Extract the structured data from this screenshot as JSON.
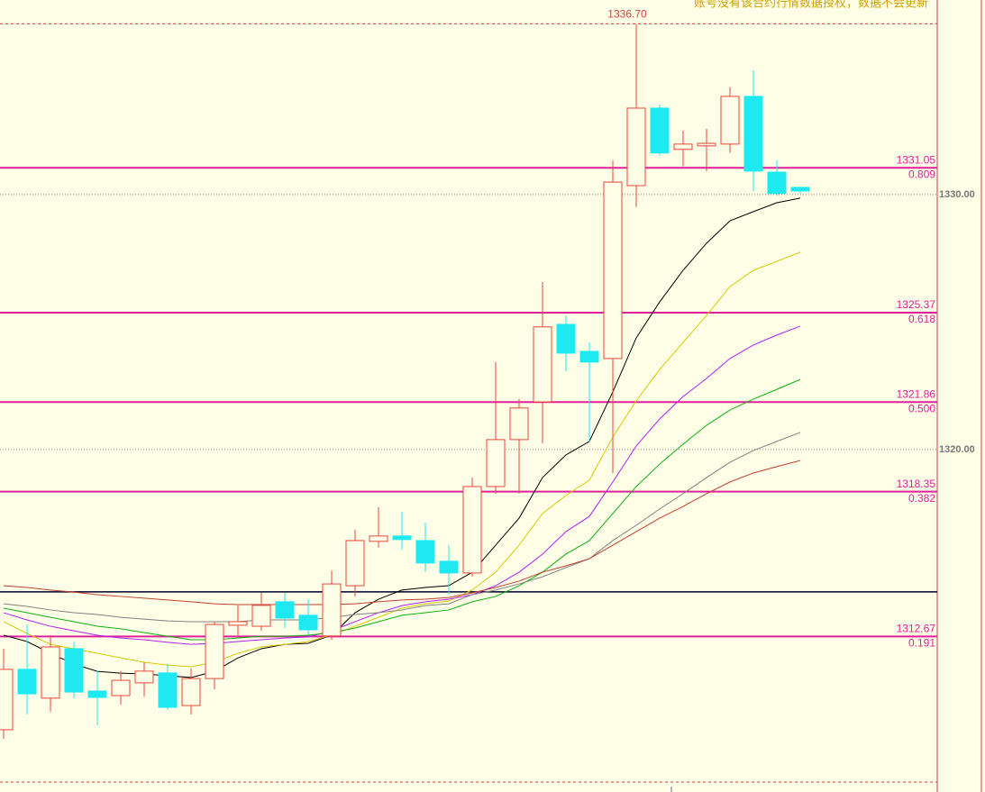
{
  "chart_data": {
    "type": "candlestick",
    "notice": "账号没有该合约行情数据授权，数据不会更新",
    "ylim": [
      1306.57,
      1337.63
    ],
    "yticks": [
      {
        "value": 1330,
        "label": "1330.00"
      },
      {
        "value": 1320,
        "label": "1320.00"
      }
    ],
    "grid": true,
    "up_color": "#e8463c",
    "down_color": "#1ee8f0",
    "open": [
      1309.01,
      1311.38,
      1310.25,
      1312.19,
      1310.53,
      1310.35,
      1310.85,
      1311.24,
      1309.96,
      1311.02,
      1313.11,
      1313.07,
      1314.03,
      1313.5,
      1312.69,
      1314.66,
      1316.4,
      1316.61,
      1316.43,
      1315.62,
      1315.16,
      1318.55,
      1320.39,
      1321.87,
      1324.91,
      1323.85,
      1323.57,
      1330.35,
      1333.39,
      1331.77,
      1331.91,
      1331.98,
      1333.85,
      1330.88,
      1330.28
    ],
    "high": [
      1312.19,
      1313.14,
      1312.72,
      1312.47,
      1311.31,
      1311.31,
      1311.66,
      1311.59,
      1311.41,
      1313.25,
      1313.89,
      1314.38,
      1314.38,
      1314.13,
      1315.26,
      1316.86,
      1317.74,
      1317.56,
      1317.14,
      1316.25,
      1318.9,
      1323.43,
      1321.98,
      1326.57,
      1325.26,
      1324.2,
      1331.34,
      1336.7,
      1333.53,
      1332.51,
      1332.58,
      1334.21,
      1334.88,
      1331.34,
      1330.32
    ],
    "low": [
      1308.66,
      1309.61,
      1309.72,
      1310.25,
      1309.19,
      1310.0,
      1310.32,
      1309.79,
      1309.61,
      1310.6,
      1312.72,
      1312.9,
      1313.0,
      1312.72,
      1312.54,
      1314.24,
      1316.15,
      1316.08,
      1315.19,
      1314.31,
      1315.02,
      1318.27,
      1318.27,
      1320.25,
      1323.07,
      1320.32,
      1319.08,
      1329.51,
      1331.52,
      1331.1,
      1330.92,
      1331.63,
      1330.14,
      1329.96,
      1330.04
    ],
    "close": [
      1311.38,
      1310.42,
      1312.26,
      1310.49,
      1310.28,
      1310.95,
      1311.31,
      1309.89,
      1311.02,
      1313.14,
      1313.25,
      1313.89,
      1313.39,
      1312.93,
      1314.73,
      1316.43,
      1316.61,
      1316.47,
      1315.55,
      1315.16,
      1318.55,
      1320.39,
      1321.63,
      1324.81,
      1323.78,
      1323.43,
      1330.49,
      1333.39,
      1331.63,
      1331.98,
      1332.01,
      1333.85,
      1330.92,
      1330.04,
      1330.14
    ],
    "lines": [
      {
        "color": "#000000",
        "values": [
          1312.72,
          1312.47,
          1312.01,
          1311.59,
          1311.3,
          1311.23,
          1311.2,
          1311.13,
          1311.06,
          1311.3,
          1311.83,
          1312.19,
          1312.36,
          1312.4,
          1312.72,
          1313.6,
          1314.13,
          1314.49,
          1314.59,
          1314.66,
          1315.19,
          1316.25,
          1317.31,
          1318.9,
          1319.79,
          1320.32,
          1322.26,
          1324.38,
          1325.79,
          1327.03,
          1328.09,
          1328.97,
          1329.33,
          1329.68,
          1329.86
        ]
      },
      {
        "color": "#d8c800",
        "values": [
          1313.25,
          1312.79,
          1312.36,
          1312.19,
          1312.01,
          1311.83,
          1311.66,
          1311.55,
          1311.48,
          1311.66,
          1312.01,
          1312.26,
          1312.36,
          1312.47,
          1312.72,
          1313.07,
          1313.42,
          1313.78,
          1313.95,
          1314.06,
          1314.49,
          1315.19,
          1316.25,
          1317.49,
          1318.2,
          1318.8,
          1320.49,
          1321.91,
          1323.14,
          1324.2,
          1325.26,
          1326.39,
          1327.03,
          1327.38,
          1327.74
        ]
      },
      {
        "color": "#b020f0",
        "values": [
          1313.6,
          1313.32,
          1313.07,
          1312.89,
          1312.72,
          1312.61,
          1312.54,
          1312.44,
          1312.36,
          1312.4,
          1312.47,
          1312.54,
          1312.61,
          1312.65,
          1312.89,
          1313.25,
          1313.6,
          1313.88,
          1314.03,
          1314.13,
          1314.31,
          1314.66,
          1315.19,
          1315.9,
          1316.78,
          1317.38,
          1318.73,
          1320.14,
          1321.2,
          1322.08,
          1322.79,
          1323.57,
          1324.1,
          1324.49,
          1324.84
        ]
      },
      {
        "color": "#10b010",
        "values": [
          1313.78,
          1313.6,
          1313.42,
          1313.25,
          1313.07,
          1312.97,
          1312.82,
          1312.68,
          1312.54,
          1312.54,
          1312.61,
          1312.68,
          1312.68,
          1312.72,
          1312.82,
          1313.0,
          1313.25,
          1313.5,
          1313.6,
          1313.71,
          1314.03,
          1314.24,
          1314.66,
          1315.19,
          1315.9,
          1316.43,
          1317.49,
          1318.55,
          1319.43,
          1320.21,
          1320.95,
          1321.55,
          1321.98,
          1322.36,
          1322.75
        ]
      },
      {
        "color": "#808080",
        "values": [
          1313.95,
          1313.85,
          1313.71,
          1313.6,
          1313.53,
          1313.42,
          1313.35,
          1313.28,
          1313.25,
          1313.25,
          1313.25,
          1313.32,
          1313.32,
          1313.32,
          1313.42,
          1313.53,
          1313.6,
          1313.71,
          1313.88,
          1313.95,
          1314.31,
          1314.49,
          1314.73,
          1315.01,
          1315.37,
          1315.72,
          1316.43,
          1317.03,
          1317.67,
          1318.27,
          1318.9,
          1319.5,
          1319.96,
          1320.32,
          1320.67
        ]
      },
      {
        "color": "#c04030",
        "values": [
          1314.66,
          1314.59,
          1314.49,
          1314.41,
          1314.31,
          1314.24,
          1314.17,
          1314.1,
          1314.03,
          1313.95,
          1313.92,
          1313.92,
          1313.92,
          1313.92,
          1313.92,
          1313.95,
          1314.03,
          1314.1,
          1314.13,
          1314.2,
          1314.38,
          1314.59,
          1314.84,
          1315.19,
          1315.44,
          1315.72,
          1316.25,
          1316.78,
          1317.31,
          1317.77,
          1318.27,
          1318.73,
          1319.08,
          1319.33,
          1319.57
        ]
      }
    ],
    "fib_color": "#e0209a",
    "fib_levels": [
      {
        "value": 1331.05,
        "ratio": "0.809"
      },
      {
        "value": 1325.37,
        "ratio": "0.618"
      },
      {
        "value": 1321.86,
        "ratio": "0.500"
      },
      {
        "value": 1318.35,
        "ratio": "0.382"
      },
      {
        "value": 1312.67,
        "ratio": "0.191"
      }
    ],
    "reference_line": 1314.42,
    "high_label": {
      "value": 1336.7,
      "label": "1336.70"
    },
    "low_line": 1306.96
  }
}
